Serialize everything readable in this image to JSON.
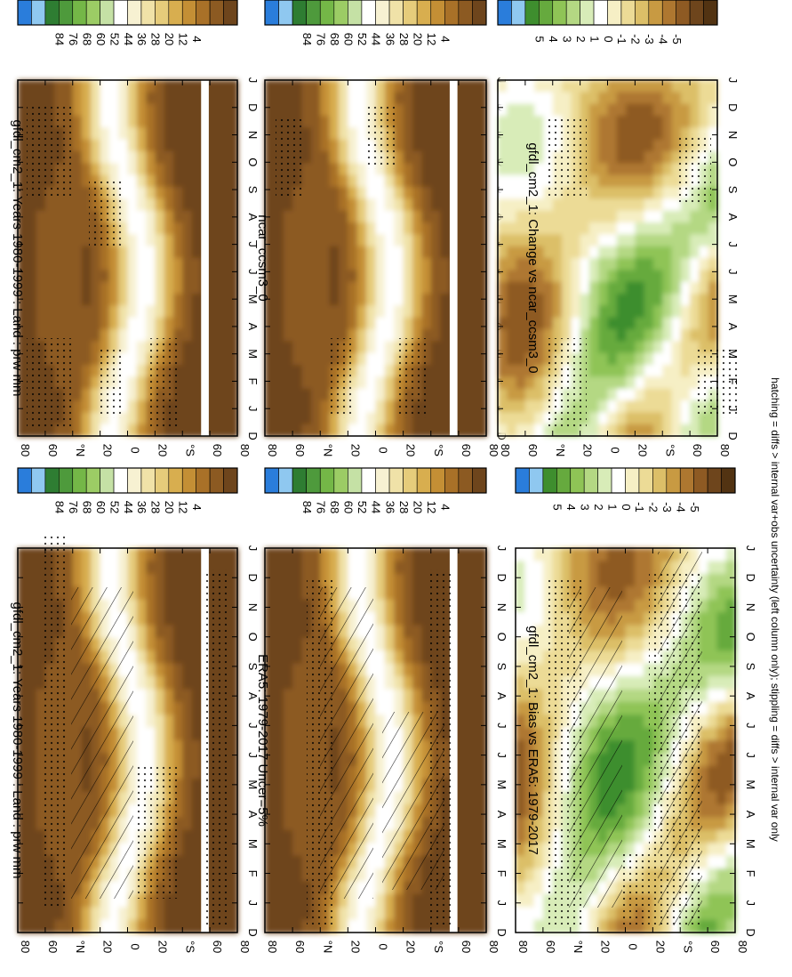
{
  "chart_data": [
    {
      "type": "heatmap",
      "panel": "top-right",
      "title": "gfdl_cm2_1: Years 1980-1999 : Land : prw mm",
      "variable": "prw",
      "units": "mm",
      "x_ticks": [
        "D",
        "J",
        "F",
        "M",
        "A",
        "M",
        "J",
        "J",
        "A",
        "S",
        "O",
        "N",
        "D",
        "J"
      ],
      "y_ticks": [
        "80",
        "60",
        "°N",
        "20",
        "0",
        "20",
        "°S",
        "60",
        "80"
      ],
      "colorbar": [
        "84",
        "76",
        "68",
        "60",
        "52",
        "44",
        "36",
        "28",
        "20",
        "12",
        "4"
      ],
      "stippling": true,
      "hatching": false
    },
    {
      "type": "heatmap",
      "panel": "top-left",
      "title": "gfdl_cm2_1: Years 1980-1999 : Land : prw mm",
      "variable": "prw",
      "units": "mm",
      "x_ticks": [
        "D",
        "J",
        "F",
        "M",
        "A",
        "M",
        "J",
        "J",
        "A",
        "S",
        "O",
        "N",
        "D",
        "J"
      ],
      "y_ticks": [
        "80",
        "60",
        "°N",
        "20",
        "0",
        "20",
        "°S",
        "60",
        "80"
      ],
      "colorbar": [
        "84",
        "76",
        "68",
        "60",
        "52",
        "44",
        "36",
        "28",
        "20",
        "12",
        "4"
      ],
      "stippling": true,
      "hatching": true
    },
    {
      "type": "heatmap",
      "panel": "middle-right",
      "title": "ncar_ccsm3_0",
      "variable": "prw",
      "units": "mm",
      "x_ticks": [
        "D",
        "J",
        "F",
        "M",
        "A",
        "M",
        "J",
        "J",
        "A",
        "S",
        "O",
        "N",
        "D",
        "J"
      ],
      "y_ticks": [
        "80",
        "60",
        "°N",
        "20",
        "0",
        "20",
        "°S",
        "60",
        "80"
      ],
      "colorbar": [
        "84",
        "76",
        "68",
        "60",
        "52",
        "44",
        "36",
        "28",
        "20",
        "12",
        "4"
      ],
      "stippling": true,
      "hatching": false
    },
    {
      "type": "heatmap",
      "panel": "middle-left",
      "title": "ERA5: 1979-2017 Uncer=5%",
      "variable": "prw",
      "units": "mm",
      "x_ticks": [
        "D",
        "J",
        "F",
        "M",
        "A",
        "M",
        "J",
        "J",
        "A",
        "S",
        "O",
        "N",
        "D",
        "J"
      ],
      "y_ticks": [
        "80",
        "60",
        "°N",
        "20",
        "0",
        "20",
        "°S",
        "60",
        "80"
      ],
      "colorbar": [
        "84",
        "76",
        "68",
        "60",
        "52",
        "44",
        "36",
        "28",
        "20",
        "12",
        "4"
      ],
      "stippling": true,
      "hatching": true
    },
    {
      "type": "heatmap",
      "panel": "bottom-right",
      "title": "gfdl_cm2_1: Change vs ncar_ccsm3_0",
      "variable": "prw difference",
      "units": "mm",
      "x_ticks": [
        "D",
        "J",
        "F",
        "M",
        "A",
        "M",
        "J",
        "J",
        "A",
        "S",
        "O",
        "N",
        "D",
        "J"
      ],
      "y_ticks": [
        "80",
        "60",
        "°N",
        "20",
        "0",
        "20",
        "°S",
        "60",
        "80"
      ],
      "colorbar": [
        "5",
        "4",
        "3",
        "2",
        "1",
        "0",
        "-1",
        "-2",
        "-3",
        "-4",
        "-5"
      ],
      "stippling": true,
      "hatching": false
    },
    {
      "type": "heatmap",
      "panel": "bottom-left",
      "title": "gfdl_cm2_1: Bias vs ERA5: 1979-2017",
      "variable": "prw bias",
      "units": "mm",
      "x_ticks": [
        "D",
        "J",
        "F",
        "M",
        "A",
        "M",
        "J",
        "J",
        "A",
        "S",
        "O",
        "N",
        "D",
        "J"
      ],
      "y_ticks": [
        "80",
        "60",
        "°N",
        "20",
        "0",
        "20",
        "°S",
        "60",
        "80"
      ],
      "colorbar": [
        "5",
        "4",
        "3",
        "2",
        "1",
        "0",
        "-1",
        "-2",
        "-3",
        "-4",
        "-5"
      ],
      "stippling": true,
      "hatching": true
    }
  ],
  "footer": "hatching = diffs > internal var+obs uncertainty (left column only); stippling = diffs > internal var only",
  "palettes": {
    "abs": [
      "#2a7ddb",
      "#8fc8f0",
      "#2e7d32",
      "#4e9a3c",
      "#74b747",
      "#9ccc65",
      "#c5e1a5",
      "#ffffff",
      "#f7f1d2",
      "#f0e2a8",
      "#e6cc7b",
      "#d8ae4f",
      "#c48f35",
      "#a97128",
      "#8c5a22",
      "#6e451c"
    ],
    "diff": [
      "#2a7ddb",
      "#8fc8f0",
      "#3e8e2e",
      "#66aa3e",
      "#8fc456",
      "#b4d883",
      "#d8ecb8",
      "#ffffff",
      "#f6efc5",
      "#ecdb96",
      "#dcbf68",
      "#c89a42",
      "#ae7730",
      "#8e5a23",
      "#6e451c",
      "#523312"
    ]
  }
}
